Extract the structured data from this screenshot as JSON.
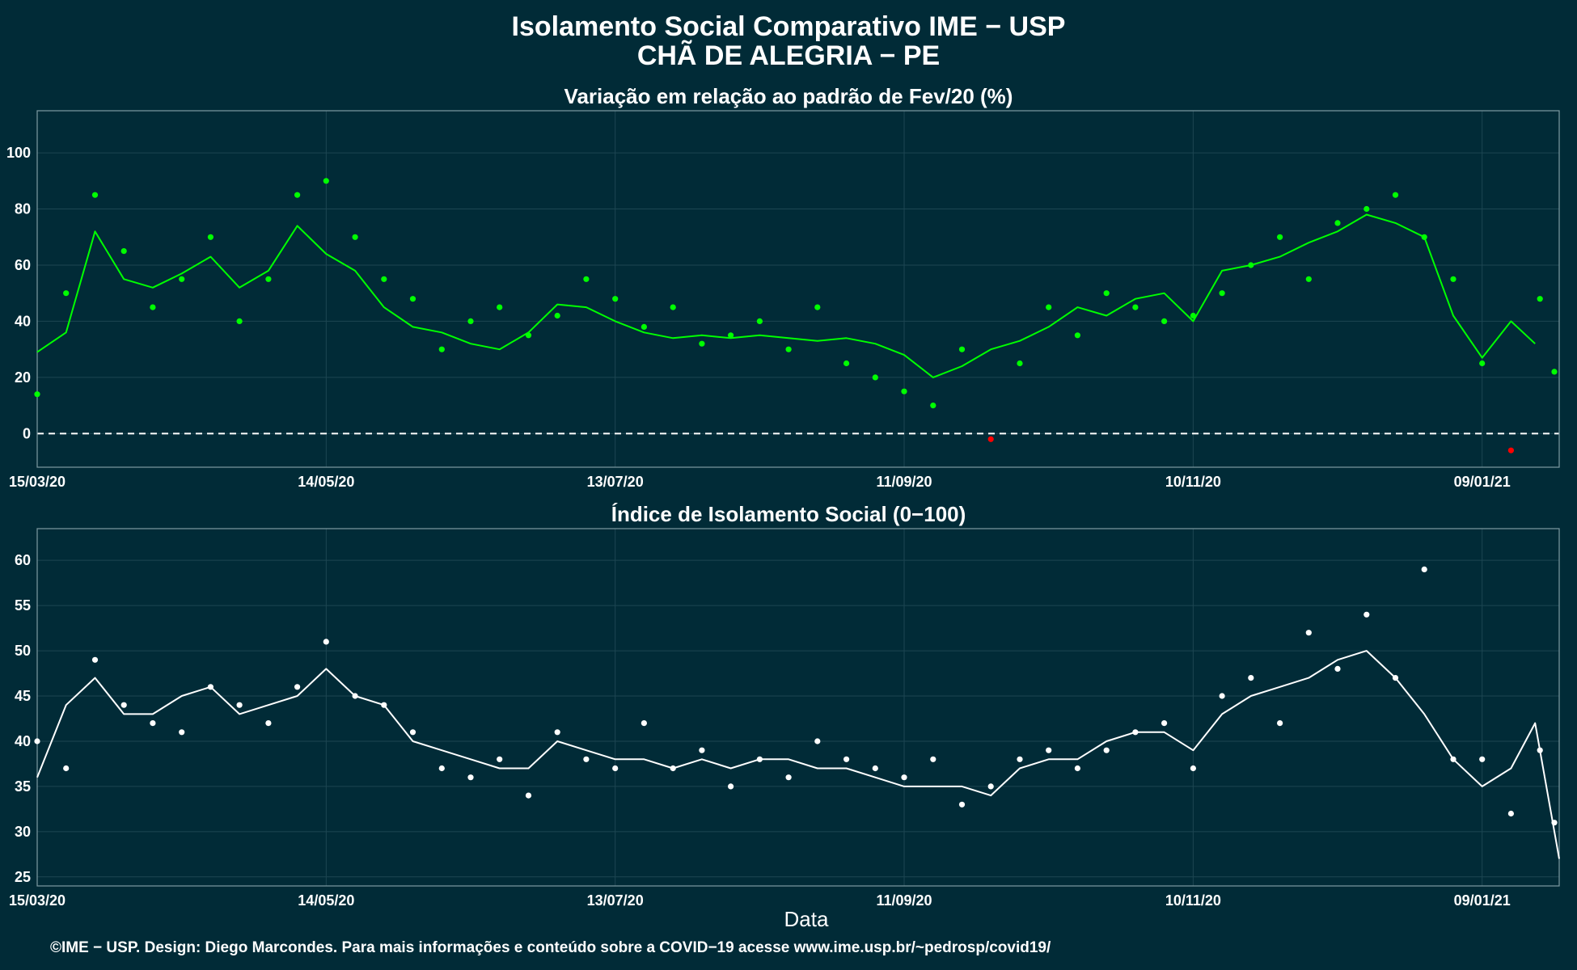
{
  "header": {
    "title_line1": "Isolamento Social Comparativo IME − USP",
    "title_line2": "CHÃ DE ALEGRIA − PE"
  },
  "footer": {
    "xlabel": "Data",
    "caption": "©IME − USP. Design: Diego Marcondes. Para mais informações e conteúdo sobre a COVID−19 acesse www.ime.usp.br/~pedrosp/covid19/"
  },
  "colors": {
    "background": "#012b37",
    "panel_border": "#7f9aa2",
    "grid": "#1d4652",
    "positive": "#00ff00",
    "negative": "#ff0000",
    "index": "#ffffff"
  },
  "chart_data": [
    {
      "type": "scatter",
      "title": "Variação em relação ao padrão de Fev/20 (%)",
      "x_type": "date",
      "x_ticks": [
        "15/03/20",
        "14/05/20",
        "13/07/20",
        "11/09/20",
        "10/11/20",
        "09/01/21"
      ],
      "x_tick_dates": [
        "2020-03-15",
        "2020-05-14",
        "2020-07-13",
        "2020-09-11",
        "2020-11-10",
        "2021-01-09"
      ],
      "xlim": [
        "2020-03-15",
        "2021-01-25"
      ],
      "ylim": [
        -12,
        115
      ],
      "y_ticks": [
        0,
        20,
        40,
        60,
        80,
        100
      ],
      "reference_line": {
        "y": 0,
        "style": "dashed"
      },
      "grid": true,
      "color_rule": "green for positive values, red for negative values",
      "series": [
        {
          "style": "points",
          "x": [
            "2020-03-15",
            "2020-03-21",
            "2020-03-27",
            "2020-04-02",
            "2020-04-08",
            "2020-04-14",
            "2020-04-20",
            "2020-04-26",
            "2020-05-02",
            "2020-05-08",
            "2020-05-14",
            "2020-05-20",
            "2020-05-26",
            "2020-06-01",
            "2020-06-07",
            "2020-06-13",
            "2020-06-19",
            "2020-06-25",
            "2020-07-01",
            "2020-07-07",
            "2020-07-13",
            "2020-07-19",
            "2020-07-25",
            "2020-07-31",
            "2020-08-06",
            "2020-08-12",
            "2020-08-18",
            "2020-08-24",
            "2020-08-30",
            "2020-09-05",
            "2020-09-11",
            "2020-09-17",
            "2020-09-23",
            "2020-09-29",
            "2020-10-05",
            "2020-10-11",
            "2020-10-17",
            "2020-10-23",
            "2020-10-29",
            "2020-11-04",
            "2020-11-10",
            "2020-11-16",
            "2020-11-22",
            "2020-11-28",
            "2020-12-04",
            "2020-12-10",
            "2020-12-16",
            "2020-12-22",
            "2020-12-28",
            "2021-01-03",
            "2021-01-09",
            "2021-01-15",
            "2021-01-21",
            "2021-01-24"
          ],
          "y": [
            14,
            50,
            85,
            65,
            45,
            55,
            70,
            40,
            55,
            85,
            90,
            70,
            55,
            48,
            30,
            40,
            45,
            35,
            42,
            55,
            48,
            38,
            45,
            32,
            35,
            40,
            30,
            45,
            25,
            20,
            15,
            10,
            30,
            -2,
            25,
            45,
            35,
            50,
            45,
            40,
            42,
            50,
            60,
            70,
            55,
            75,
            80,
            85,
            70,
            55,
            25,
            -6,
            48,
            22
          ]
        },
        {
          "style": "line",
          "name": "",
          "x": [
            "2020-03-15",
            "2020-03-21",
            "2020-03-27",
            "2020-04-02",
            "2020-04-08",
            "2020-04-14",
            "2020-04-20",
            "2020-04-26",
            "2020-05-02",
            "2020-05-08",
            "2020-05-14",
            "2020-05-20",
            "2020-05-26",
            "2020-06-01",
            "2020-06-07",
            "2020-06-13",
            "2020-06-19",
            "2020-06-25",
            "2020-07-01",
            "2020-07-07",
            "2020-07-13",
            "2020-07-19",
            "2020-07-25",
            "2020-07-31",
            "2020-08-06",
            "2020-08-12",
            "2020-08-18",
            "2020-08-24",
            "2020-08-30",
            "2020-09-05",
            "2020-09-11",
            "2020-09-17",
            "2020-09-23",
            "2020-09-29",
            "2020-10-05",
            "2020-10-11",
            "2020-10-17",
            "2020-10-23",
            "2020-10-29",
            "2020-11-04",
            "2020-11-10",
            "2020-11-16",
            "2020-11-22",
            "2020-11-28",
            "2020-12-04",
            "2020-12-10",
            "2020-12-16",
            "2020-12-22",
            "2020-12-28",
            "2021-01-03",
            "2021-01-09",
            "2021-01-15",
            "2021-01-20"
          ],
          "y": [
            29,
            36,
            72,
            55,
            52,
            57,
            63,
            52,
            58,
            74,
            64,
            58,
            45,
            38,
            36,
            32,
            30,
            36,
            46,
            45,
            40,
            36,
            34,
            35,
            34,
            35,
            34,
            33,
            34,
            32,
            28,
            20,
            24,
            30,
            33,
            38,
            45,
            42,
            48,
            50,
            40,
            58,
            60,
            63,
            68,
            72,
            78,
            75,
            70,
            42,
            27,
            40,
            32
          ]
        }
      ]
    },
    {
      "type": "scatter",
      "title": "Índice de Isolamento Social (0−100)",
      "x_type": "date",
      "x_ticks": [
        "15/03/20",
        "14/05/20",
        "13/07/20",
        "11/09/20",
        "10/11/20",
        "09/01/21"
      ],
      "x_tick_dates": [
        "2020-03-15",
        "2020-05-14",
        "2020-07-13",
        "2020-09-11",
        "2020-11-10",
        "2021-01-09"
      ],
      "xlim": [
        "2020-03-15",
        "2021-01-25"
      ],
      "ylim": [
        24,
        63.5
      ],
      "y_ticks": [
        25,
        30,
        35,
        40,
        45,
        50,
        55,
        60
      ],
      "grid": true,
      "series": [
        {
          "style": "points",
          "x": [
            "2020-03-15",
            "2020-03-21",
            "2020-03-27",
            "2020-04-02",
            "2020-04-08",
            "2020-04-14",
            "2020-04-20",
            "2020-04-26",
            "2020-05-02",
            "2020-05-08",
            "2020-05-14",
            "2020-05-20",
            "2020-05-26",
            "2020-06-01",
            "2020-06-07",
            "2020-06-13",
            "2020-06-19",
            "2020-06-25",
            "2020-07-01",
            "2020-07-07",
            "2020-07-13",
            "2020-07-19",
            "2020-07-25",
            "2020-07-31",
            "2020-08-06",
            "2020-08-12",
            "2020-08-18",
            "2020-08-24",
            "2020-08-30",
            "2020-09-05",
            "2020-09-11",
            "2020-09-17",
            "2020-09-23",
            "2020-09-29",
            "2020-10-05",
            "2020-10-11",
            "2020-10-17",
            "2020-10-23",
            "2020-10-29",
            "2020-11-04",
            "2020-11-10",
            "2020-11-16",
            "2020-11-22",
            "2020-11-28",
            "2020-12-04",
            "2020-12-10",
            "2020-12-16",
            "2020-12-22",
            "2020-12-28",
            "2021-01-03",
            "2021-01-09",
            "2021-01-15",
            "2021-01-21",
            "2021-01-24"
          ],
          "y": [
            40,
            37,
            49,
            44,
            42,
            41,
            46,
            44,
            42,
            46,
            51,
            45,
            44,
            41,
            37,
            36,
            38,
            34,
            41,
            38,
            37,
            42,
            37,
            39,
            35,
            38,
            36,
            40,
            38,
            37,
            36,
            38,
            33,
            35,
            38,
            39,
            37,
            39,
            41,
            42,
            37,
            45,
            47,
            42,
            52,
            48,
            54,
            47,
            59,
            38,
            38,
            32,
            39,
            31
          ]
        },
        {
          "style": "line",
          "name": "",
          "x": [
            "2020-03-15",
            "2020-03-21",
            "2020-03-27",
            "2020-04-02",
            "2020-04-08",
            "2020-04-14",
            "2020-04-20",
            "2020-04-26",
            "2020-05-02",
            "2020-05-08",
            "2020-05-14",
            "2020-05-20",
            "2020-05-26",
            "2020-06-01",
            "2020-06-07",
            "2020-06-13",
            "2020-06-19",
            "2020-06-25",
            "2020-07-01",
            "2020-07-07",
            "2020-07-13",
            "2020-07-19",
            "2020-07-25",
            "2020-07-31",
            "2020-08-06",
            "2020-08-12",
            "2020-08-18",
            "2020-08-24",
            "2020-08-30",
            "2020-09-05",
            "2020-09-11",
            "2020-09-17",
            "2020-09-23",
            "2020-09-29",
            "2020-10-05",
            "2020-10-11",
            "2020-10-17",
            "2020-10-23",
            "2020-10-29",
            "2020-11-04",
            "2020-11-10",
            "2020-11-16",
            "2020-11-22",
            "2020-11-28",
            "2020-12-04",
            "2020-12-10",
            "2020-12-16",
            "2020-12-22",
            "2020-12-28",
            "2021-01-03",
            "2021-01-09",
            "2021-01-15",
            "2021-01-20",
            "2021-01-25"
          ],
          "y": [
            36,
            44,
            47,
            43,
            43,
            45,
            46,
            43,
            44,
            45,
            48,
            45,
            44,
            40,
            39,
            38,
            37,
            37,
            40,
            39,
            38,
            38,
            37,
            38,
            37,
            38,
            38,
            37,
            37,
            36,
            35,
            35,
            35,
            34,
            37,
            38,
            38,
            40,
            41,
            41,
            39,
            43,
            45,
            46,
            47,
            49,
            50,
            47,
            43,
            38,
            35,
            37,
            42,
            27
          ]
        }
      ]
    }
  ]
}
